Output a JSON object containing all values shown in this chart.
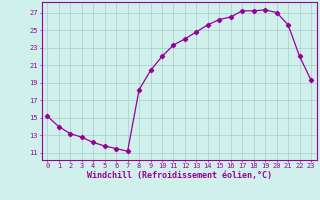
{
  "x": [
    0,
    1,
    2,
    3,
    4,
    5,
    6,
    7,
    8,
    9,
    10,
    11,
    12,
    13,
    14,
    15,
    16,
    17,
    18,
    19,
    20,
    21,
    22,
    23
  ],
  "y": [
    15.2,
    14.0,
    13.2,
    12.8,
    12.2,
    11.8,
    11.5,
    11.2,
    18.2,
    20.4,
    22.0,
    23.3,
    24.0,
    24.8,
    25.6,
    26.2,
    26.5,
    27.2,
    27.2,
    27.3,
    27.0,
    25.6,
    22.0,
    19.3
  ],
  "line_color": "#990099",
  "marker": "D",
  "markersize": 2.2,
  "linewidth": 0.9,
  "bg_color": "#cff0eb",
  "grid_color": "#aacccc",
  "xlabel": "Windchill (Refroidissement éolien,°C)",
  "xlabel_color": "#990099",
  "ylabel_ticks": [
    11,
    13,
    15,
    17,
    19,
    21,
    23,
    25,
    27
  ],
  "xlim": [
    -0.5,
    23.5
  ],
  "ylim": [
    10.2,
    28.2
  ],
  "xticks": [
    0,
    1,
    2,
    3,
    4,
    5,
    6,
    7,
    8,
    9,
    10,
    11,
    12,
    13,
    14,
    15,
    16,
    17,
    18,
    19,
    20,
    21,
    22,
    23
  ],
  "tick_color": "#990099",
  "tick_fontsize": 5.0,
  "xlabel_fontsize": 6.0
}
